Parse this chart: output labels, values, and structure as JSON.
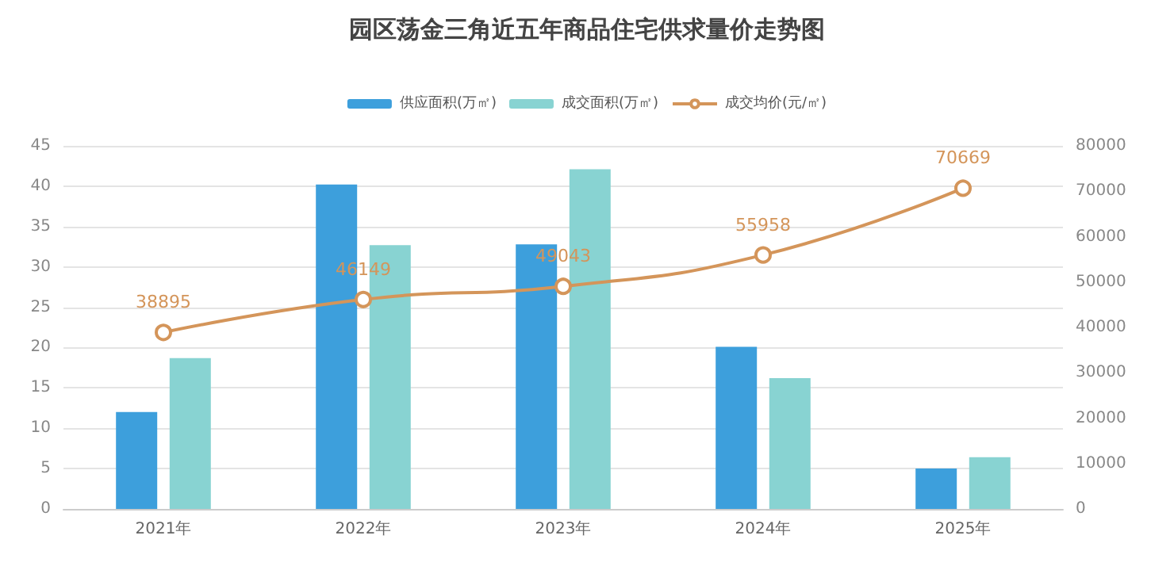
{
  "chart_data": {
    "type": "bar",
    "title": "园区荡金三角近五年商品住宅供求量价走势图",
    "categories": [
      "2021年",
      "2022年",
      "2023年",
      "2024年",
      "2025年"
    ],
    "series": [
      {
        "name": "供应面积(万㎡)",
        "color": "#3d9fdc",
        "values": [
          12,
          40.2,
          32.8,
          20.1,
          5
        ]
      },
      {
        "name": "成交面积(万㎡)",
        "color": "#88d3d2",
        "values": [
          18.7,
          32.7,
          42.1,
          16.2,
          6.4
        ]
      },
      {
        "name": "成交均价(元/㎡)",
        "type": "line",
        "axis": "y2",
        "color": "#d4955a",
        "marker": "circle",
        "values": [
          38895,
          46149,
          49043,
          55958,
          70669
        ],
        "value_labels": [
          "38895",
          "46149",
          "49043",
          "55958",
          "70669"
        ]
      }
    ],
    "ylim": [
      0,
      45
    ],
    "yticks": [
      0,
      5,
      10,
      15,
      20,
      25,
      30,
      35,
      40,
      45
    ],
    "y2lim": [
      0,
      80000
    ],
    "y2ticks": [
      0,
      10000,
      20000,
      30000,
      40000,
      50000,
      60000,
      70000,
      80000
    ],
    "grid": "y",
    "legend": "top"
  }
}
